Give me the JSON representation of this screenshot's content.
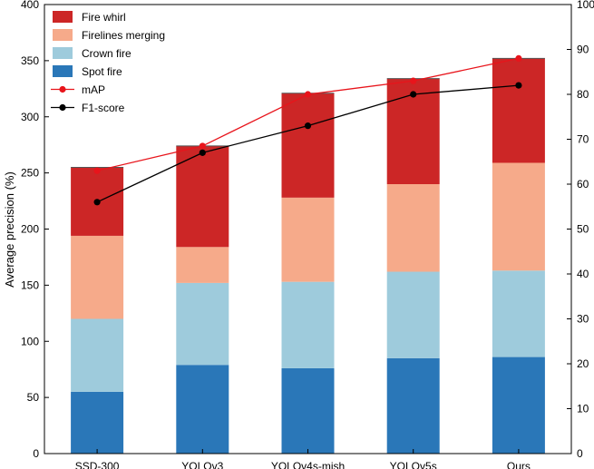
{
  "chart_data": {
    "type": "bar",
    "subtype": "stacked-bar-with-lines",
    "categories": [
      "SSD-300",
      "YOLOv3",
      "YOLOv4s-mish",
      "YOLOv5s",
      "Ours"
    ],
    "ylabel": "Average precision (%)",
    "ylim": [
      0,
      400
    ],
    "yticks": [
      0,
      50,
      100,
      150,
      200,
      250,
      300,
      350,
      400
    ],
    "y2lim": [
      0,
      100
    ],
    "y2ticks": [
      0,
      10,
      20,
      30,
      40,
      50,
      60,
      70,
      80,
      90,
      100
    ],
    "grid": false,
    "legend_position": "top-left",
    "series": [
      {
        "name": "Spot fire",
        "kind": "bar",
        "axis": "left",
        "color": "#2a77b8",
        "values": [
          55,
          79,
          76,
          85,
          86
        ]
      },
      {
        "name": "Crown fire",
        "kind": "bar",
        "axis": "left",
        "color": "#9ecbdc",
        "values": [
          65,
          73,
          77,
          77,
          77
        ]
      },
      {
        "name": "Firelines merging",
        "kind": "bar",
        "axis": "left",
        "color": "#f6aa8a",
        "values": [
          74,
          32,
          75,
          78,
          96
        ]
      },
      {
        "name": "Fire whirl",
        "kind": "bar",
        "axis": "left",
        "color": "#cc2626",
        "values": [
          61,
          90,
          93,
          94,
          93
        ]
      },
      {
        "name": "mAP",
        "kind": "line",
        "axis": "right",
        "color": "#e8141b",
        "values": [
          63,
          68.5,
          80,
          83,
          88
        ]
      },
      {
        "name": "F1-score",
        "kind": "line",
        "axis": "right",
        "color": "#000000",
        "values": [
          56,
          67,
          73,
          80,
          82
        ]
      }
    ],
    "legend_order": [
      "Fire whirl",
      "Firelines merging",
      "Crown fire",
      "Spot fire",
      "mAP",
      "F1-score"
    ]
  }
}
